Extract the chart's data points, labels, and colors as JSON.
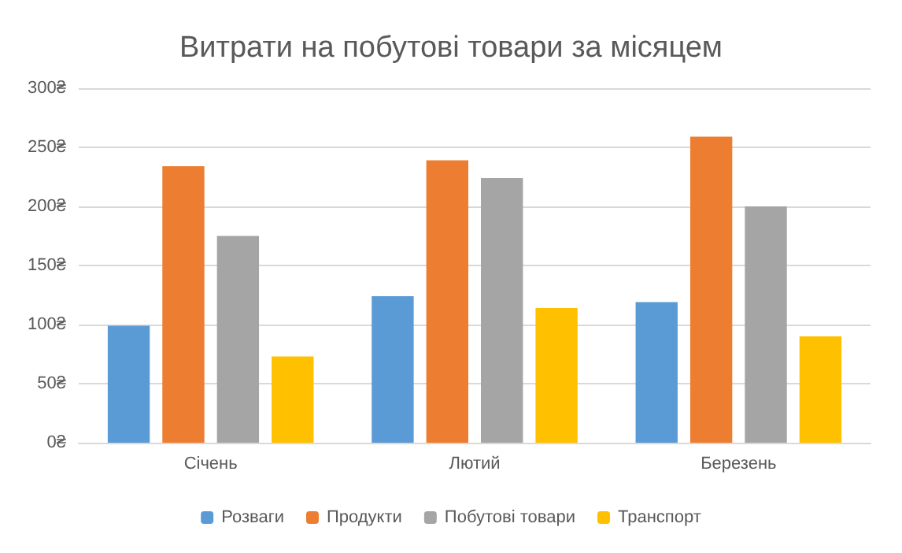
{
  "chart_data": {
    "type": "bar",
    "title": "Витрати на побутові товари за місяцем",
    "categories": [
      "Січень",
      "Лютий",
      "Березень"
    ],
    "series": [
      {
        "name": "Розваги",
        "color": "#5b9bd5",
        "values": [
          99,
          124,
          119
        ]
      },
      {
        "name": "Продукти",
        "color": "#ed7d31",
        "values": [
          234,
          239,
          259
        ]
      },
      {
        "name": "Побутові товари",
        "color": "#a5a5a5",
        "values": [
          175,
          224,
          200
        ]
      },
      {
        "name": "Транспорт",
        "color": "#ffc000",
        "values": [
          73,
          114,
          90
        ]
      }
    ],
    "ylim": [
      0,
      300
    ],
    "yticks": [
      {
        "value": 0,
        "label": "0₴"
      },
      {
        "value": 50,
        "label": "50₴"
      },
      {
        "value": 100,
        "label": "100₴"
      },
      {
        "value": 150,
        "label": "150₴"
      },
      {
        "value": 200,
        "label": "200₴"
      },
      {
        "value": 250,
        "label": "250₴"
      },
      {
        "value": 300,
        "label": "300₴"
      }
    ],
    "grid": "y",
    "legend": "bottom"
  }
}
